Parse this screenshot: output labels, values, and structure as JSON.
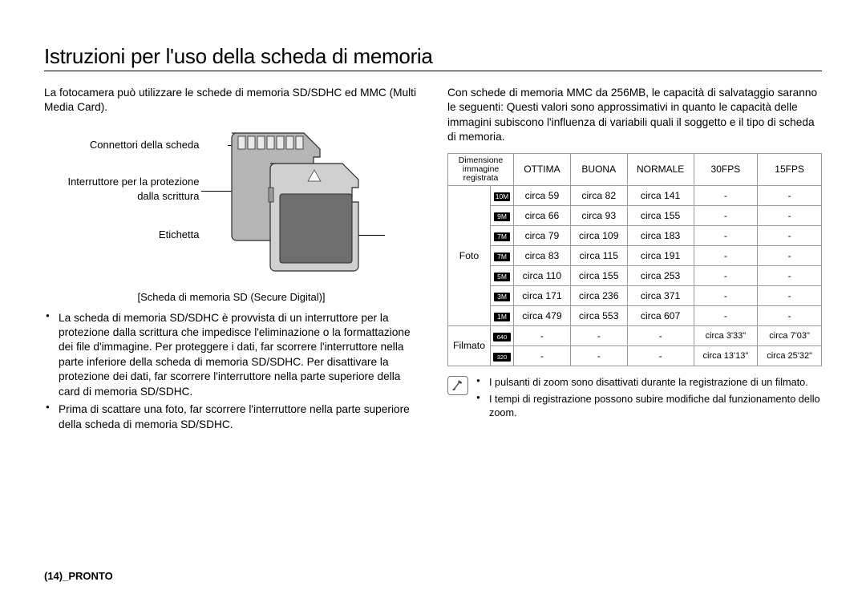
{
  "title": "Istruzioni per l'uso della scheda di memoria",
  "left": {
    "intro": "La fotocamera può utilizzare le schede di memoria SD/SDHC ed MMC (Multi Media Card).",
    "labels": {
      "connettori": "Connettori della scheda",
      "interruttore": "Interruttore per la protezione dalla scrittura",
      "etichetta": "Etichetta"
    },
    "caption": "[Scheda di memoria SD (Secure Digital)]",
    "bullets": [
      "La scheda di memoria SD/SDHC è provvista di un interruttore per la protezione dalla scrittura che impedisce l'eliminazione o la formattazione dei file d'immagine. Per proteggere i dati, far scorrere l'interruttore nella parte inferiore della scheda di memoria SD/SDHC. Per disattivare la protezione dei dati, far scorrere l'interruttore nella parte superiore della card di memoria SD/SDHC.",
      "Prima di scattare una foto, far scorrere l'interruttore nella parte superiore della scheda di memoria SD/SDHC."
    ]
  },
  "right": {
    "intro": "Con schede di memoria MMC da 256MB, le capacità di salvataggio saranno le seguenti: Questi valori sono approssimativi in quanto le capacità delle immagini subiscono l'influenza di variabili quali il soggetto e il tipo di scheda di memoria.",
    "table": {
      "headers": {
        "dim": "Dimensione immagine registrata",
        "ottima": "OTTIMA",
        "buona": "BUONA",
        "normale": "NORMALE",
        "fps30": "30FPS",
        "fps15": "15FPS"
      },
      "groups": {
        "foto": "Foto",
        "filmato": "Filmato"
      },
      "foto_rows": [
        {
          "icon": "10M",
          "o": "circa 59",
          "b": "circa 82",
          "n": "circa 141",
          "f30": "-",
          "f15": "-"
        },
        {
          "icon": "9M",
          "o": "circa 66",
          "b": "circa 93",
          "n": "circa 155",
          "f30": "-",
          "f15": "-"
        },
        {
          "icon": "7M",
          "o": "circa 79",
          "b": "circa 109",
          "n": "circa 183",
          "f30": "-",
          "f15": "-"
        },
        {
          "icon": "7M",
          "o": "circa 83",
          "b": "circa 115",
          "n": "circa 191",
          "f30": "-",
          "f15": "-"
        },
        {
          "icon": "5M",
          "o": "circa 110",
          "b": "circa 155",
          "n": "circa 253",
          "f30": "-",
          "f15": "-"
        },
        {
          "icon": "3M",
          "o": "circa 171",
          "b": "circa 236",
          "n": "circa 371",
          "f30": "-",
          "f15": "-"
        },
        {
          "icon": "1M",
          "o": "circa 479",
          "b": "circa 553",
          "n": "circa 607",
          "f30": "-",
          "f15": "-"
        }
      ],
      "filmato_rows": [
        {
          "icon": "640",
          "o": "-",
          "b": "-",
          "n": "-",
          "f30": "circa 3'33\"",
          "f15": "circa 7'03\""
        },
        {
          "icon": "320",
          "o": "-",
          "b": "-",
          "n": "-",
          "f30": "circa 13'13\"",
          "f15": "circa 25'32\""
        }
      ]
    },
    "notes": [
      "I pulsanti di zoom sono disattivati durante la registrazione di un filmato.",
      "I tempi di registrazione possono subire modifiche dal funzionamento dello zoom."
    ]
  },
  "footer": "(14)_PRONTO",
  "colors": {
    "card_back": "#b5b5b5",
    "card_front_fill": "#6e6e6e",
    "card_front_light": "#d0d0d0",
    "card_outline": "#2b2b2b"
  }
}
